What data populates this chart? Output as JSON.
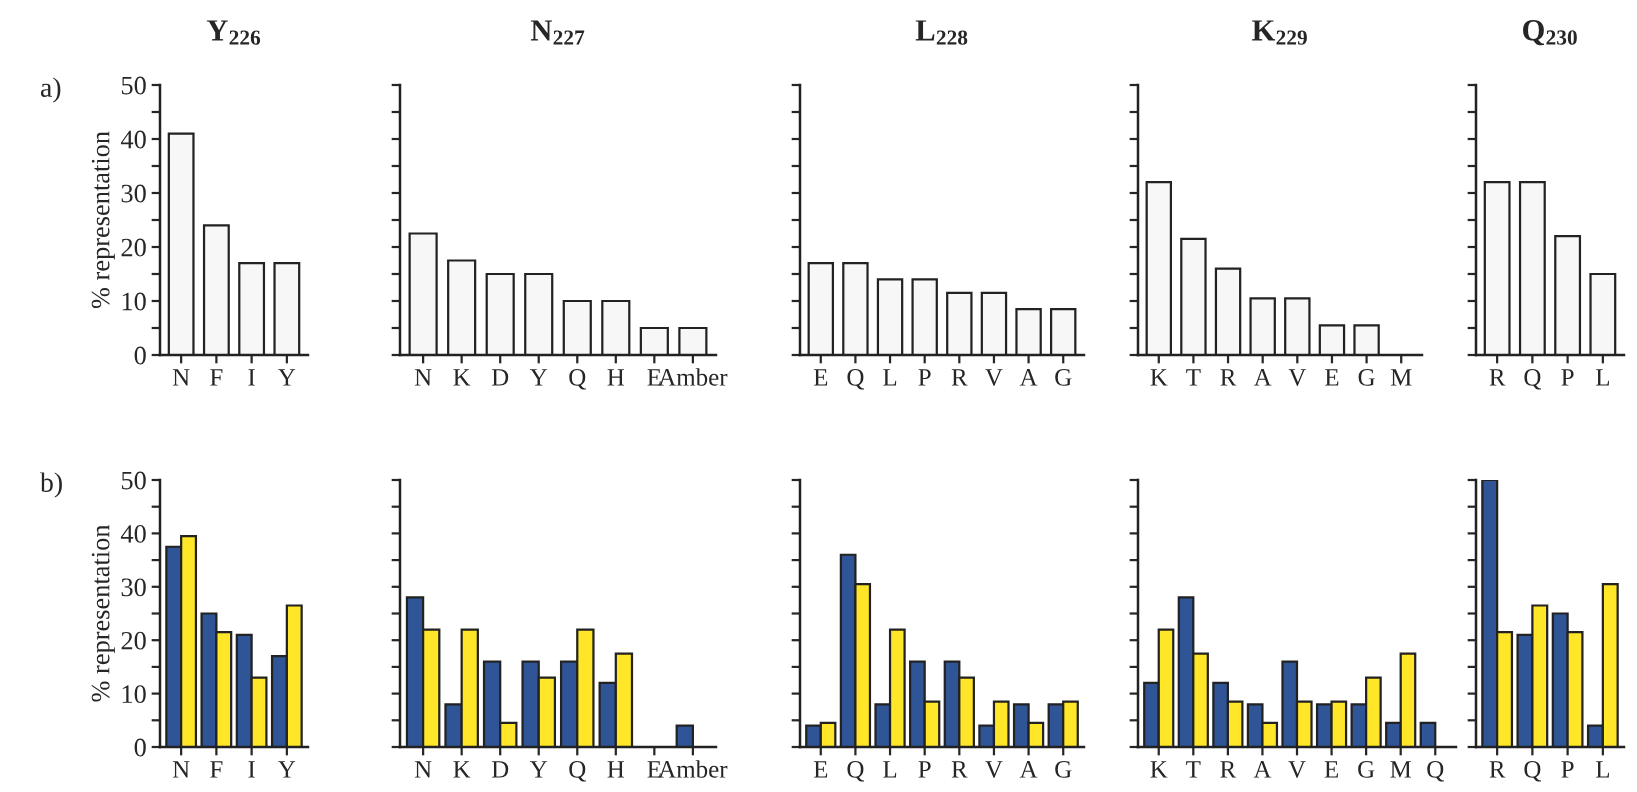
{
  "chart_data": [
    {
      "type": "bar",
      "title": "Y$_{226}$",
      "ylabel": "% representation",
      "annotations": [
        "a)"
      ],
      "categories": [
        "N",
        "F",
        "I",
        "Y"
      ],
      "ylim": [
        0,
        50
      ],
      "yticks": [
        0,
        {
          "value": 5,
          "label": null
        },
        10,
        {
          "value": 15,
          "label": null
        },
        20,
        {
          "value": 25,
          "label": null
        },
        30,
        {
          "value": 35,
          "label": null
        },
        40,
        {
          "value": 45,
          "label": null
        },
        50
      ],
      "grid": false,
      "series": [
        {
          "color": "#f7f7f7",
          "values": [
            41,
            24,
            17,
            17
          ]
        }
      ]
    },
    {
      "type": "bar",
      "title": "N$_{227}$",
      "categories": [
        "N",
        "K",
        "D",
        "Y",
        "Q",
        "H",
        "E",
        "Amber"
      ],
      "ylim": [
        0,
        50
      ],
      "yticks": [
        0,
        {
          "value": 5,
          "label": null
        },
        10,
        {
          "value": 15,
          "label": null
        },
        20,
        {
          "value": 25,
          "label": null
        },
        30,
        {
          "value": 35,
          "label": null
        },
        40,
        {
          "value": 45,
          "label": null
        },
        50
      ],
      "tick_labels": "x",
      "grid": false,
      "series": [
        {
          "color": "#f7f7f7",
          "values": [
            22.5,
            17.5,
            15,
            15,
            10,
            10,
            5,
            5
          ]
        }
      ]
    },
    {
      "type": "bar",
      "title": "L$_{228}$",
      "categories": [
        "E",
        "Q",
        "L",
        "P",
        "R",
        "V",
        "A",
        "G"
      ],
      "ylim": [
        0,
        50
      ],
      "yticks": [
        0,
        {
          "value": 5,
          "label": null
        },
        10,
        {
          "value": 15,
          "label": null
        },
        20,
        {
          "value": 25,
          "label": null
        },
        30,
        {
          "value": 35,
          "label": null
        },
        40,
        {
          "value": 45,
          "label": null
        },
        50
      ],
      "tick_labels": "x",
      "grid": false,
      "series": [
        {
          "color": "#f7f7f7",
          "values": [
            17,
            17,
            14,
            14,
            11.5,
            11.5,
            8.5,
            8.5
          ]
        }
      ]
    },
    {
      "type": "bar",
      "title": "K$_{229}$",
      "categories": [
        "K",
        "T",
        "R",
        "A",
        "V",
        "E",
        "G",
        "M"
      ],
      "ylim": [
        0,
        50
      ],
      "yticks": [
        0,
        {
          "value": 5,
          "label": null
        },
        10,
        {
          "value": 15,
          "label": null
        },
        20,
        {
          "value": 25,
          "label": null
        },
        30,
        {
          "value": 35,
          "label": null
        },
        40,
        {
          "value": 45,
          "label": null
        },
        50
      ],
      "tick_labels": "x",
      "grid": false,
      "series": [
        {
          "color": "#f7f7f7",
          "values": [
            32,
            21.5,
            16,
            10.5,
            10.5,
            5.5,
            5.5,
            0
          ]
        }
      ]
    },
    {
      "type": "bar",
      "title": "Q$_{230}$",
      "categories": [
        "R",
        "Q",
        "P",
        "L"
      ],
      "ylim": [
        0,
        50
      ],
      "yticks": [
        0,
        {
          "value": 5,
          "label": null
        },
        10,
        {
          "value": 15,
          "label": null
        },
        20,
        {
          "value": 25,
          "label": null
        },
        30,
        {
          "value": 35,
          "label": null
        },
        40,
        {
          "value": 45,
          "label": null
        },
        50
      ],
      "tick_labels": "x",
      "grid": false,
      "series": [
        {
          "color": "#f7f7f7",
          "values": [
            32,
            32,
            22,
            15
          ]
        }
      ]
    },
    {
      "type": "bar",
      "ylabel": "% representation",
      "annotations": [
        "b)"
      ],
      "categories": [
        "N",
        "F",
        "I",
        "Y"
      ],
      "ylim": [
        0,
        50
      ],
      "yticks": [
        0,
        {
          "value": 5,
          "label": null
        },
        10,
        {
          "value": 15,
          "label": null
        },
        20,
        {
          "value": 25,
          "label": null
        },
        30,
        {
          "value": 35,
          "label": null
        },
        40,
        {
          "value": 45,
          "label": null
        },
        50
      ],
      "grid": false,
      "series": [
        {
          "color": "#2f5597",
          "values": [
            37.5,
            25,
            21,
            17
          ]
        },
        {
          "color": "#ffe629",
          "values": [
            39.5,
            21.5,
            13,
            26.5
          ]
        }
      ]
    },
    {
      "type": "bar",
      "categories": [
        "N",
        "K",
        "D",
        "Y",
        "Q",
        "H",
        "E",
        "Amber"
      ],
      "ylim": [
        0,
        50
      ],
      "yticks": [
        0,
        {
          "value": 5,
          "label": null
        },
        10,
        {
          "value": 15,
          "label": null
        },
        20,
        {
          "value": 25,
          "label": null
        },
        30,
        {
          "value": 35,
          "label": null
        },
        40,
        {
          "value": 45,
          "label": null
        },
        50
      ],
      "tick_labels": "x",
      "grid": false,
      "series": [
        {
          "color": "#2f5597",
          "values": [
            28,
            8,
            16,
            16,
            16,
            12,
            0,
            4
          ]
        },
        {
          "color": "#ffe629",
          "values": [
            22,
            22,
            4.5,
            13,
            22,
            17.5,
            0,
            0
          ]
        }
      ]
    },
    {
      "type": "bar",
      "categories": [
        "E",
        "Q",
        "L",
        "P",
        "R",
        "V",
        "A",
        "G"
      ],
      "ylim": [
        0,
        50
      ],
      "yticks": [
        0,
        {
          "value": 5,
          "label": null
        },
        10,
        {
          "value": 15,
          "label": null
        },
        20,
        {
          "value": 25,
          "label": null
        },
        30,
        {
          "value": 35,
          "label": null
        },
        40,
        {
          "value": 45,
          "label": null
        },
        50
      ],
      "tick_labels": "x",
      "grid": false,
      "series": [
        {
          "color": "#2f5597",
          "values": [
            4,
            36,
            8,
            16,
            16,
            4,
            8,
            8
          ]
        },
        {
          "color": "#ffe629",
          "values": [
            4.5,
            30.5,
            22,
            8.5,
            13,
            8.5,
            4.5,
            8.5
          ]
        }
      ]
    },
    {
      "type": "bar",
      "categories": [
        "K",
        "T",
        "R",
        "A",
        "V",
        "E",
        "G",
        "M",
        "Q"
      ],
      "ylim": [
        0,
        50
      ],
      "yticks": [
        0,
        {
          "value": 5,
          "label": null
        },
        10,
        {
          "value": 15,
          "label": null
        },
        20,
        {
          "value": 25,
          "label": null
        },
        30,
        {
          "value": 35,
          "label": null
        },
        40,
        {
          "value": 45,
          "label": null
        },
        50
      ],
      "tick_labels": "x",
      "grid": false,
      "series": [
        {
          "color": "#2f5597",
          "values": [
            12,
            28,
            12,
            8,
            16,
            8,
            8,
            4.5,
            4.5
          ]
        },
        {
          "color": "#ffe629",
          "values": [
            22,
            17.5,
            8.5,
            4.5,
            8.5,
            8.5,
            13,
            17.5,
            0
          ]
        }
      ]
    },
    {
      "type": "bar",
      "categories": [
        "R",
        "Q",
        "P",
        "L"
      ],
      "ylim": [
        0,
        50
      ],
      "yticks": [
        0,
        {
          "value": 5,
          "label": null
        },
        10,
        {
          "value": 15,
          "label": null
        },
        20,
        {
          "value": 25,
          "label": null
        },
        30,
        {
          "value": 35,
          "label": null
        },
        40,
        {
          "value": 45,
          "label": null
        },
        50
      ],
      "tick_labels": "x",
      "grid": false,
      "series": [
        {
          "color": "#2f5597",
          "values": [
            50,
            21,
            25,
            4
          ]
        },
        {
          "color": "#ffe629",
          "values": [
            21.5,
            26.5,
            21.5,
            30.5
          ]
        }
      ]
    }
  ]
}
